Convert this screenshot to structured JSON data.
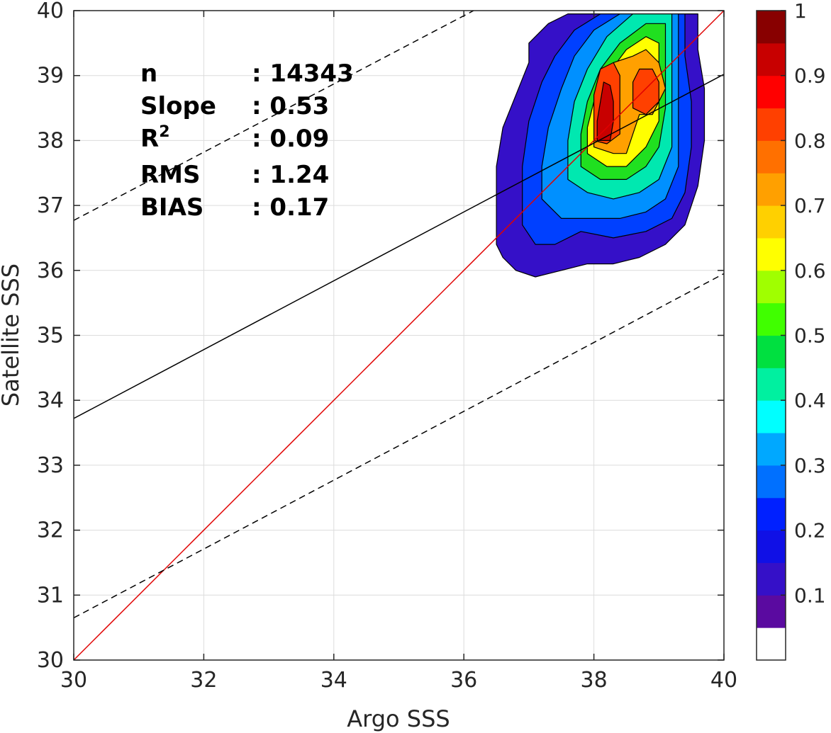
{
  "chart_data": {
    "type": "contour",
    "xlabel": "Argo SSS",
    "ylabel": "Satellite SSS",
    "xlim": [
      30,
      40
    ],
    "ylim": [
      30,
      40
    ],
    "x_ticks": [
      "30",
      "32",
      "34",
      "36",
      "38",
      "40"
    ],
    "y_ticks": [
      "30",
      "31",
      "32",
      "33",
      "34",
      "35",
      "36",
      "37",
      "38",
      "39",
      "40"
    ],
    "grid": true,
    "stats": [
      {
        "label": "n",
        "value": ": 14343"
      },
      {
        "label": "Slope",
        "value": ": 0.53"
      },
      {
        "label": "R",
        "sup": "2",
        "value": ": 0.09"
      },
      {
        "label": "RMS",
        "value": ": 1.24"
      },
      {
        "label": "BIAS",
        "value": ": 0.17"
      }
    ],
    "lines": [
      {
        "name": "one-to-one",
        "color": "#e00000",
        "style": "solid",
        "points": [
          [
            30,
            30
          ],
          [
            40,
            40
          ]
        ]
      },
      {
        "name": "regression",
        "color": "#000000",
        "style": "solid",
        "points": [
          [
            30,
            33.72
          ],
          [
            40,
            39.02
          ]
        ]
      },
      {
        "name": "upper-bound",
        "color": "#000000",
        "style": "dashed",
        "points": [
          [
            30,
            36.77
          ],
          [
            36.15,
            40
          ]
        ]
      },
      {
        "name": "lower-bound",
        "color": "#000000",
        "style": "dashed",
        "points": [
          [
            30,
            30.65
          ],
          [
            40,
            35.95
          ]
        ]
      }
    ],
    "contours": [
      {
        "level": 0.1,
        "color": "#3510c8",
        "points": [
          [
            36.5,
            36.4
          ],
          [
            36.6,
            36.2
          ],
          [
            36.8,
            36.0
          ],
          [
            37.1,
            35.9
          ],
          [
            37.5,
            36.0
          ],
          [
            37.9,
            36.1
          ],
          [
            38.3,
            36.1
          ],
          [
            38.7,
            36.2
          ],
          [
            39.1,
            36.4
          ],
          [
            39.4,
            36.7
          ],
          [
            39.6,
            37.3
          ],
          [
            39.7,
            38.0
          ],
          [
            39.7,
            38.8
          ],
          [
            39.6,
            39.4
          ],
          [
            39.6,
            39.95
          ],
          [
            38.7,
            39.95
          ],
          [
            37.6,
            39.95
          ],
          [
            37.3,
            39.8
          ],
          [
            37.0,
            39.5
          ],
          [
            37.0,
            39.2
          ],
          [
            36.8,
            38.7
          ],
          [
            36.6,
            38.2
          ],
          [
            36.5,
            37.6
          ],
          [
            36.5,
            37.0
          ]
        ]
      },
      {
        "level": 0.2,
        "color": "#0040ff",
        "points": [
          [
            36.9,
            36.7
          ],
          [
            37.1,
            36.4
          ],
          [
            37.4,
            36.4
          ],
          [
            37.8,
            36.6
          ],
          [
            38.3,
            36.5
          ],
          [
            38.8,
            36.6
          ],
          [
            39.2,
            36.8
          ],
          [
            39.4,
            37.2
          ],
          [
            39.5,
            37.9
          ],
          [
            39.5,
            38.6
          ],
          [
            39.4,
            39.3
          ],
          [
            39.4,
            39.95
          ],
          [
            38.1,
            39.95
          ],
          [
            37.7,
            39.7
          ],
          [
            37.4,
            39.3
          ],
          [
            37.2,
            38.9
          ],
          [
            37.0,
            38.3
          ],
          [
            36.9,
            37.6
          ],
          [
            36.9,
            37.1
          ]
        ]
      },
      {
        "level": 0.3,
        "color": "#0090ff",
        "points": [
          [
            37.2,
            37.1
          ],
          [
            37.5,
            36.8
          ],
          [
            37.9,
            36.8
          ],
          [
            38.4,
            36.8
          ],
          [
            38.8,
            36.9
          ],
          [
            39.1,
            37.1
          ],
          [
            39.3,
            37.6
          ],
          [
            39.3,
            38.3
          ],
          [
            39.3,
            39.0
          ],
          [
            39.3,
            39.95
          ],
          [
            38.4,
            39.95
          ],
          [
            38.0,
            39.7
          ],
          [
            37.7,
            39.3
          ],
          [
            37.5,
            38.8
          ],
          [
            37.3,
            38.2
          ],
          [
            37.2,
            37.6
          ]
        ]
      },
      {
        "level": 0.4,
        "color": "#00e8b0",
        "points": [
          [
            37.6,
            37.4
          ],
          [
            37.9,
            37.2
          ],
          [
            38.3,
            37.1
          ],
          [
            38.7,
            37.2
          ],
          [
            39.0,
            37.4
          ],
          [
            39.2,
            37.9
          ],
          [
            39.2,
            38.6
          ],
          [
            39.2,
            39.3
          ],
          [
            39.2,
            39.95
          ],
          [
            38.6,
            39.95
          ],
          [
            38.2,
            39.6
          ],
          [
            37.9,
            39.1
          ],
          [
            37.7,
            38.6
          ],
          [
            37.6,
            38.0
          ]
        ]
      },
      {
        "level": 0.5,
        "color": "#20e020",
        "points": [
          [
            37.8,
            37.6
          ],
          [
            38.1,
            37.4
          ],
          [
            38.5,
            37.4
          ],
          [
            38.8,
            37.6
          ],
          [
            39.0,
            37.9
          ],
          [
            39.1,
            38.5
          ],
          [
            39.1,
            39.2
          ],
          [
            39.1,
            39.8
          ],
          [
            38.8,
            39.8
          ],
          [
            38.4,
            39.5
          ],
          [
            38.1,
            39.1
          ],
          [
            37.9,
            38.6
          ],
          [
            37.8,
            38.1
          ]
        ]
      },
      {
        "level": 0.6,
        "color": "#ffff00",
        "points": [
          [
            37.9,
            37.8
          ],
          [
            38.2,
            37.6
          ],
          [
            38.5,
            37.6
          ],
          [
            38.8,
            37.9
          ],
          [
            39.0,
            38.3
          ],
          [
            39.0,
            38.9
          ],
          [
            39.0,
            39.5
          ],
          [
            38.8,
            39.6
          ],
          [
            38.5,
            39.4
          ],
          [
            38.2,
            39.0
          ],
          [
            38.0,
            38.6
          ],
          [
            37.9,
            38.2
          ]
        ]
      },
      {
        "level": 0.7,
        "color": "#ffa000",
        "points": [
          [
            38.0,
            37.9
          ],
          [
            38.3,
            37.8
          ],
          [
            38.5,
            37.8
          ],
          [
            38.6,
            38.1
          ],
          [
            38.7,
            38.4
          ],
          [
            38.9,
            38.4
          ],
          [
            39.1,
            38.8
          ],
          [
            39.0,
            39.2
          ],
          [
            38.8,
            39.4
          ],
          [
            38.6,
            39.3
          ],
          [
            38.3,
            39.2
          ],
          [
            38.1,
            38.9
          ],
          [
            38.0,
            38.5
          ]
        ]
      },
      {
        "level": 0.8,
        "color": "#ff4000",
        "points": [
          [
            38.0,
            38.0
          ],
          [
            38.2,
            37.95
          ],
          [
            38.4,
            38.1
          ],
          [
            38.4,
            38.6
          ],
          [
            38.4,
            39.0
          ],
          [
            38.3,
            39.2
          ],
          [
            38.1,
            39.1
          ],
          [
            38.0,
            38.7
          ],
          [
            38.0,
            38.3
          ]
        ]
      },
      {
        "level": 0.8,
        "color": "#ff4000",
        "points": [
          [
            38.6,
            38.5
          ],
          [
            38.8,
            38.4
          ],
          [
            39.0,
            38.6
          ],
          [
            39.0,
            38.9
          ],
          [
            38.9,
            39.1
          ],
          [
            38.7,
            39.1
          ],
          [
            38.6,
            38.9
          ]
        ]
      },
      {
        "level": 0.9,
        "color": "#c80000",
        "points": [
          [
            38.05,
            38.0
          ],
          [
            38.25,
            38.0
          ],
          [
            38.3,
            38.3
          ],
          [
            38.3,
            38.6
          ],
          [
            38.25,
            38.85
          ],
          [
            38.15,
            38.9
          ],
          [
            38.1,
            38.6
          ],
          [
            38.05,
            38.3
          ]
        ]
      }
    ],
    "colorbar": {
      "ticks": [
        "0.1",
        "0.2",
        "0.3",
        "0.4",
        "0.5",
        "0.6",
        "0.7",
        "0.8",
        "0.9",
        "1"
      ],
      "tick_values": [
        0.1,
        0.2,
        0.3,
        0.4,
        0.5,
        0.6,
        0.7,
        0.8,
        0.9,
        1.0
      ],
      "range": [
        0,
        1
      ],
      "bands": [
        {
          "from": 0.0,
          "to": 0.05,
          "color": "#ffffff"
        },
        {
          "from": 0.05,
          "to": 0.1,
          "color": "#5a0aa0"
        },
        {
          "from": 0.1,
          "to": 0.15,
          "color": "#3510c8"
        },
        {
          "from": 0.15,
          "to": 0.2,
          "color": "#1010e6"
        },
        {
          "from": 0.2,
          "to": 0.25,
          "color": "#0020ff"
        },
        {
          "from": 0.25,
          "to": 0.3,
          "color": "#0070ff"
        },
        {
          "from": 0.3,
          "to": 0.35,
          "color": "#00a8ff"
        },
        {
          "from": 0.35,
          "to": 0.4,
          "color": "#00ffff"
        },
        {
          "from": 0.4,
          "to": 0.45,
          "color": "#00f0a0"
        },
        {
          "from": 0.45,
          "to": 0.5,
          "color": "#00e040"
        },
        {
          "from": 0.5,
          "to": 0.55,
          "color": "#40ff00"
        },
        {
          "from": 0.55,
          "to": 0.6,
          "color": "#a0ff00"
        },
        {
          "from": 0.6,
          "to": 0.65,
          "color": "#ffff00"
        },
        {
          "from": 0.65,
          "to": 0.7,
          "color": "#ffd000"
        },
        {
          "from": 0.7,
          "to": 0.75,
          "color": "#ffa000"
        },
        {
          "from": 0.75,
          "to": 0.8,
          "color": "#ff7000"
        },
        {
          "from": 0.8,
          "to": 0.85,
          "color": "#ff4000"
        },
        {
          "from": 0.85,
          "to": 0.9,
          "color": "#ff0000"
        },
        {
          "from": 0.9,
          "to": 0.95,
          "color": "#c80000"
        },
        {
          "from": 0.95,
          "to": 1.0,
          "color": "#880000"
        }
      ]
    }
  }
}
